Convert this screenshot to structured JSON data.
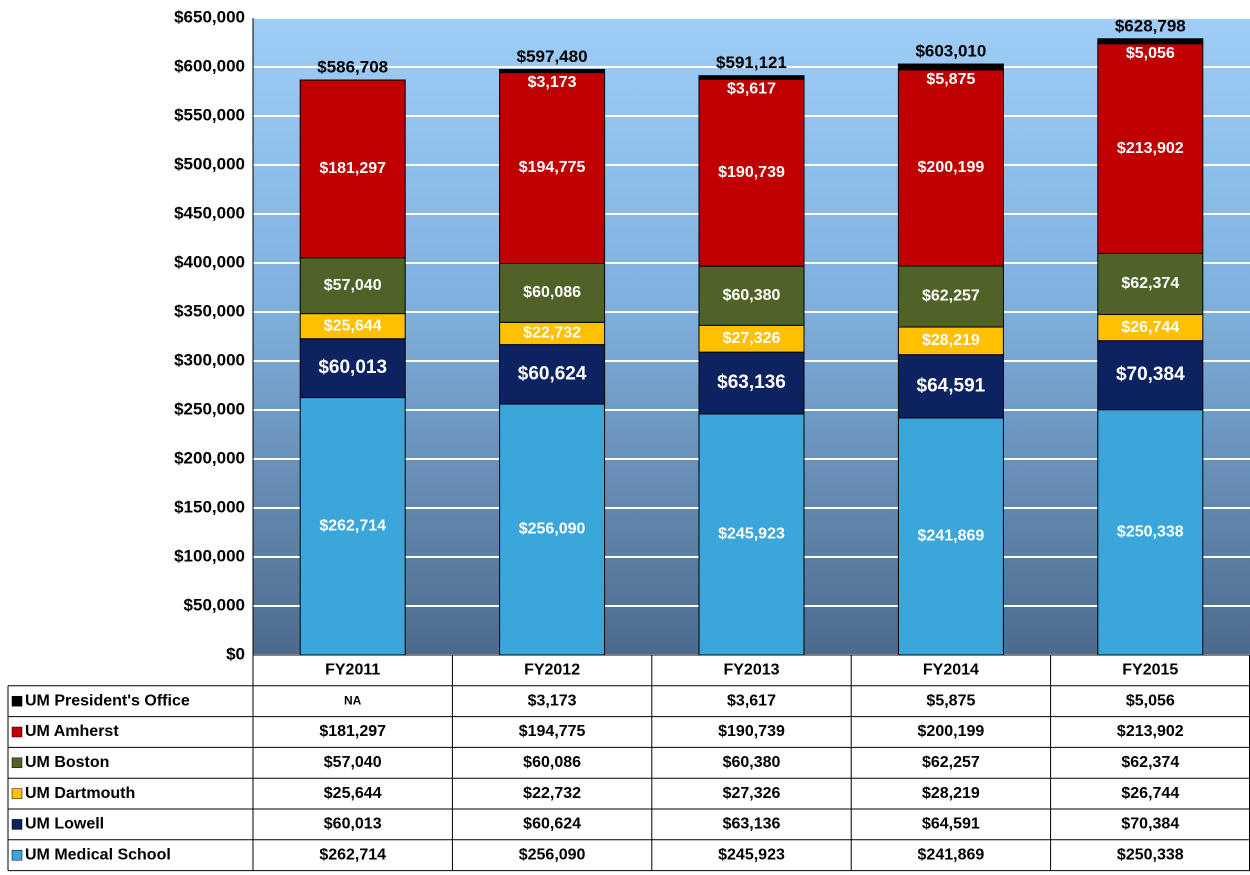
{
  "chart_data": {
    "type": "bar",
    "stacked": true,
    "categories": [
      "FY2011",
      "FY2012",
      "FY2013",
      "FY2014",
      "FY2015"
    ],
    "series": [
      {
        "name": "UM Medical School",
        "color": "#3aa6da",
        "values": [
          262714,
          256090,
          245923,
          241869,
          250338
        ],
        "value_labels": [
          "$262,714",
          "$256,090",
          "$245,923",
          "$241,869",
          "$250,338"
        ]
      },
      {
        "name": "UM Lowell",
        "color": "#0d2260",
        "values": [
          60013,
          60624,
          63136,
          64591,
          70384
        ],
        "value_labels": [
          "$60,013",
          "$60,624",
          "$63,136",
          "$64,591",
          "$70,384"
        ]
      },
      {
        "name": "UM Dartmouth",
        "color": "#ffc000",
        "values": [
          25644,
          22732,
          27326,
          28219,
          26744
        ],
        "value_labels": [
          "$25,644",
          "$22,732",
          "$27,326",
          "$28,219",
          "$26,744"
        ]
      },
      {
        "name": "UM Boston",
        "color": "#4f6228",
        "values": [
          57040,
          60086,
          60380,
          62257,
          62374
        ],
        "value_labels": [
          "$57,040",
          "$60,086",
          "$60,380",
          "$62,257",
          "$62,374"
        ]
      },
      {
        "name": "UM Amherst",
        "color": "#c00000",
        "values": [
          181297,
          194775,
          190739,
          200199,
          213902
        ],
        "value_labels": [
          "$181,297",
          "$194,775",
          "$190,739",
          "$200,199",
          "$213,902"
        ]
      },
      {
        "name": "UM President's Office",
        "color": "#000000",
        "values": [
          null,
          3173,
          3617,
          5875,
          5056
        ],
        "value_labels": [
          "NA",
          "$3,173",
          "$3,617",
          "$5,875",
          "$5,056"
        ]
      }
    ],
    "totals": [
      586708,
      597480,
      591121,
      603010,
      628798
    ],
    "total_labels": [
      "$586,708",
      "$597,480",
      "$591,121",
      "$603,010",
      "$628,798"
    ],
    "ylim": [
      0,
      650000
    ],
    "yticks": [
      {
        "value": 0,
        "label": "$0"
      },
      {
        "value": 50000,
        "label": "$50,000"
      },
      {
        "value": 100000,
        "label": "$100,000"
      },
      {
        "value": 150000,
        "label": "$150,000"
      },
      {
        "value": 200000,
        "label": "$200,000"
      },
      {
        "value": 250000,
        "label": "$250,000"
      },
      {
        "value": 300000,
        "label": "$300,000"
      },
      {
        "value": 350000,
        "label": "$350,000"
      },
      {
        "value": 400000,
        "label": "$400,000"
      },
      {
        "value": 450000,
        "label": "$450,000"
      },
      {
        "value": 500000,
        "label": "$500,000"
      },
      {
        "value": 550000,
        "label": "$550,000"
      },
      {
        "value": 600000,
        "label": "$600,000"
      },
      {
        "value": 650000,
        "label": "$650,000"
      }
    ],
    "grid": true
  }
}
